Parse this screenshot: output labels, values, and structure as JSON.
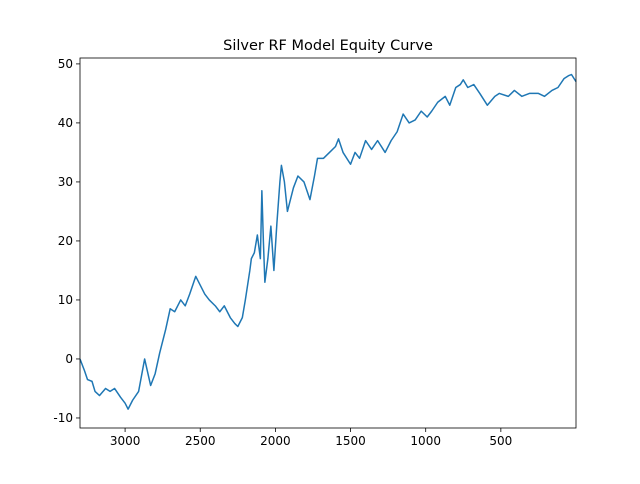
{
  "chart_data": {
    "type": "line",
    "title": "Silver RF Model Equity Curve",
    "x": [
      3300,
      3270,
      3250,
      3220,
      3200,
      3170,
      3130,
      3100,
      3070,
      3030,
      3000,
      2980,
      2950,
      2910,
      2870,
      2830,
      2800,
      2770,
      2730,
      2700,
      2670,
      2630,
      2600,
      2570,
      2530,
      2500,
      2470,
      2440,
      2400,
      2370,
      2340,
      2300,
      2270,
      2250,
      2220,
      2200,
      2170,
      2160,
      2140,
      2120,
      2100,
      2090,
      2080,
      2070,
      2050,
      2030,
      2010,
      1990,
      1970,
      1960,
      1940,
      1920,
      1880,
      1850,
      1810,
      1770,
      1740,
      1720,
      1680,
      1640,
      1600,
      1580,
      1550,
      1500,
      1470,
      1440,
      1400,
      1360,
      1320,
      1270,
      1230,
      1190,
      1150,
      1110,
      1070,
      1030,
      990,
      960,
      920,
      870,
      840,
      800,
      770,
      750,
      720,
      680,
      640,
      590,
      540,
      510,
      450,
      410,
      360,
      310,
      250,
      210,
      160,
      120,
      80,
      50,
      30,
      0
    ],
    "values": [
      0,
      -2,
      -3.5,
      -3.8,
      -5.5,
      -6.2,
      -5,
      -5.5,
      -5,
      -6.5,
      -7.5,
      -8.5,
      -7,
      -5.5,
      0,
      -4.5,
      -2.5,
      1,
      5,
      8.5,
      8,
      10,
      9,
      11,
      14,
      12.5,
      11,
      10,
      9,
      8,
      9,
      7,
      6,
      5.5,
      7,
      10,
      15,
      17,
      18,
      21,
      17,
      28.5,
      20,
      13,
      17,
      22.5,
      15,
      23,
      30,
      32.8,
      30,
      25,
      29,
      31,
      30,
      27,
      31,
      34,
      34,
      35,
      36,
      37.3,
      35,
      33,
      35,
      34,
      37,
      35.5,
      37,
      35,
      37,
      38.5,
      41.5,
      40,
      40.5,
      42,
      41,
      42,
      43.5,
      44.5,
      43,
      46,
      46.5,
      47.3,
      46,
      46.5,
      45,
      43,
      44.5,
      45,
      44.5,
      45.5,
      44.5,
      45,
      45,
      44.5,
      45.5,
      46,
      47.5,
      48,
      48.2,
      47
    ],
    "color": "#1f77b4",
    "xlim": [
      3300,
      0
    ],
    "ylim": [
      -11.7,
      51
    ],
    "xticks": [
      3000,
      2500,
      2000,
      1500,
      1000,
      500
    ],
    "yticks": [
      -10,
      0,
      10,
      20,
      30,
      40,
      50
    ]
  }
}
